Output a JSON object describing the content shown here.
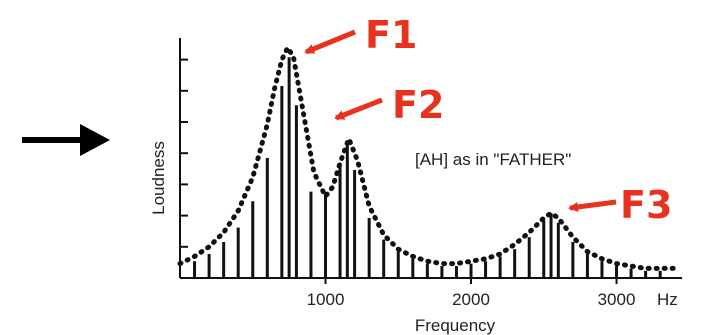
{
  "chart_data": {
    "type": "bar",
    "title": "",
    "xlabel": "Frequency",
    "ylabel": "Loudness",
    "x_unit": "Hz",
    "xlim": [
      0,
      3450
    ],
    "ylim": [
      0,
      10
    ],
    "x_ticks": [
      {
        "value": 1000,
        "label": "1000"
      },
      {
        "value": 2000,
        "label": "2000"
      },
      {
        "value": 3000,
        "label": "3000"
      }
    ],
    "annotation": "[AH] as in \"FATHER\"",
    "formants": [
      {
        "label": "F1",
        "x": 740,
        "y": 9.6
      },
      {
        "label": "F2",
        "x": 1160,
        "y": 5.8
      },
      {
        "label": "F3",
        "x": 2550,
        "y": 2.7
      }
    ],
    "harmonics": {
      "x": [
        100,
        200,
        300,
        400,
        500,
        600,
        700,
        750,
        800,
        900,
        1000,
        1100,
        1150,
        1200,
        1300,
        1400,
        1500,
        1600,
        1700,
        1800,
        1900,
        2000,
        2100,
        2200,
        2300,
        2400,
        2500,
        2550,
        2600,
        2700,
        2800,
        2900,
        3000,
        3100,
        3200,
        3300
      ],
      "values": [
        0.7,
        1.0,
        1.5,
        2.1,
        3.2,
        5.0,
        8.0,
        9.2,
        7.2,
        3.6,
        3.5,
        4.8,
        5.6,
        4.5,
        2.5,
        1.6,
        1.1,
        0.8,
        0.6,
        0.5,
        0.5,
        0.6,
        0.7,
        0.9,
        1.2,
        1.7,
        2.4,
        2.7,
        2.3,
        1.5,
        1.0,
        0.7,
        0.5,
        0.4,
        0.3,
        0.3
      ]
    },
    "envelope": {
      "x": [
        0,
        100,
        200,
        300,
        400,
        500,
        600,
        650,
        700,
        740,
        780,
        850,
        920,
        1000,
        1050,
        1100,
        1160,
        1220,
        1300,
        1400,
        1500,
        1600,
        1700,
        1800,
        1900,
        2000,
        2100,
        2200,
        2300,
        2400,
        2500,
        2550,
        2600,
        2700,
        2800,
        2900,
        3000,
        3100,
        3200,
        3300,
        3400
      ],
      "values": [
        0.6,
        0.9,
        1.3,
        1.9,
        2.8,
        4.2,
        6.4,
        7.9,
        9.1,
        9.6,
        9.2,
        6.8,
        4.4,
        3.4,
        3.8,
        4.8,
        5.8,
        4.9,
        3.0,
        1.8,
        1.2,
        0.9,
        0.7,
        0.6,
        0.6,
        0.7,
        0.8,
        1.0,
        1.4,
        1.9,
        2.5,
        2.7,
        2.5,
        1.7,
        1.1,
        0.8,
        0.6,
        0.5,
        0.4,
        0.4,
        0.4
      ]
    },
    "grid": false,
    "legend": "none",
    "colors": {
      "bars": "#111111",
      "envelope": "#111111",
      "formant_labels": "#e8321e",
      "arrows": "#e8321e",
      "pointer": "#000000"
    }
  }
}
